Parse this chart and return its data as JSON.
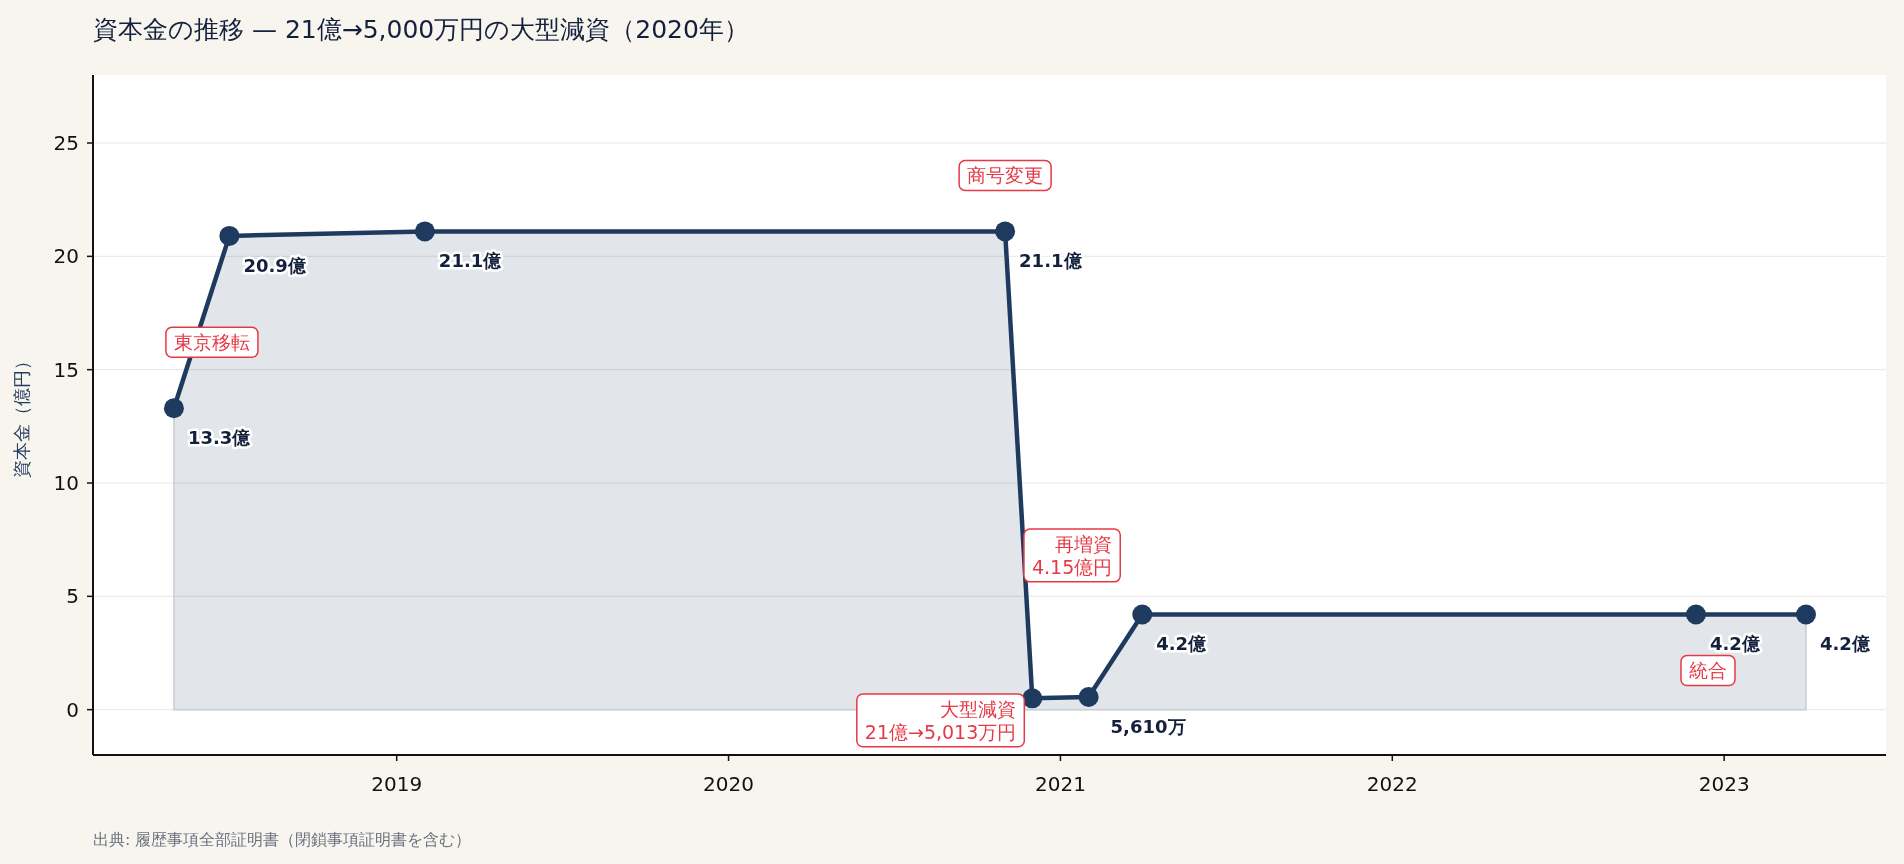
{
  "chart_data": {
    "type": "area",
    "title": "資本金の推移 — 21億→5,000万円の大型減資（2020年）",
    "ylabel": "資本金（億円）",
    "x": [
      "2018-05",
      "2018-07",
      "2019-02",
      "2020-11",
      "2020-12",
      "2021-02",
      "2021-04",
      "2022-12",
      "2023-04"
    ],
    "series": [
      {
        "color": "#1f3a5f",
        "values": [
          13.3,
          20.9,
          21.1,
          21.1,
          0.5,
          0.56,
          4.2,
          4.2,
          4.2
        ],
        "value_labels": [
          "13.3億",
          "20.9億",
          "21.1億",
          "21.1億",
          null,
          null,
          "4.2億",
          "4.2億",
          "4.2億"
        ]
      }
    ],
    "xlim": [
      "2018-02",
      "2023-06-28"
    ],
    "xticks": [
      {
        "value": "2019-01-01",
        "label": "2019"
      },
      {
        "value": "2020-01-01",
        "label": "2020"
      },
      {
        "value": "2021-01-01",
        "label": "2021"
      },
      {
        "value": "2022-01-01",
        "label": "2022"
      },
      {
        "value": "2023-01-01",
        "label": "2023"
      }
    ],
    "ylim": [
      -2,
      28
    ],
    "yticks": [
      0,
      5,
      10,
      15,
      20,
      25
    ],
    "grid": "y",
    "marker": "circle",
    "annotations": [
      {
        "text": "東京移転",
        "x": "2018-05",
        "y": 13.3
      },
      {
        "text": "商号変更",
        "x": "2020-11",
        "y": 21.1
      },
      {
        "text": "再増資\n4.15億円",
        "x": "2021-04",
        "y": 4.2
      },
      {
        "text": "大型減資\n21億→5,013万円",
        "x": "2020-12",
        "y": 0.5
      },
      {
        "text": "統合",
        "x": "2022-12",
        "y": 4.2
      },
      {
        "text": "5,610万",
        "x": "2021-02",
        "y": 0.56
      },
      "出典: 履歴事項全部証明書（閉鎖事項証明書を含む）"
    ]
  }
}
